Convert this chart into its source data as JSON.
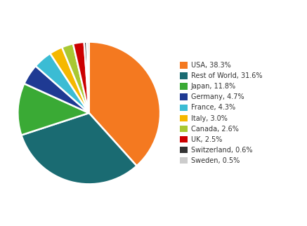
{
  "labels": [
    "USA",
    "Rest of World",
    "Japan",
    "Germany",
    "France",
    "Italy",
    "Canada",
    "UK",
    "Switzerland",
    "Sweden"
  ],
  "values": [
    38.3,
    31.6,
    11.8,
    4.7,
    4.3,
    3.0,
    2.6,
    2.5,
    0.6,
    0.5
  ],
  "colors": [
    "#F47920",
    "#1A6B72",
    "#3AAA35",
    "#1F3A93",
    "#3BBCD4",
    "#F5B800",
    "#A8C832",
    "#CC0000",
    "#333333",
    "#CCCCCC"
  ],
  "legend_labels": [
    "USA, 38.3%",
    "Rest of World, 31.6%",
    "Japan, 11.8%",
    "Germany, 4.7%",
    "France, 4.3%",
    "Italy, 3.0%",
    "Canada, 2.6%",
    "UK, 2.5%",
    "Switzerland, 0.6%",
    "Sweden, 0.5%"
  ],
  "startangle": 90,
  "background_color": "#ffffff",
  "figsize": [
    4.37,
    3.22
  ],
  "dpi": 100
}
